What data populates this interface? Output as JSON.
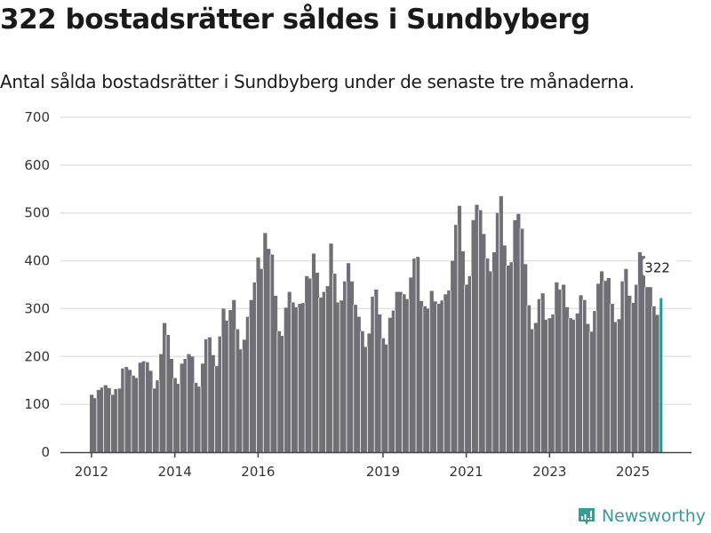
{
  "header": {
    "title": "322 bostadsrätter såldes i Sundbyberg",
    "subtitle": "Antal sålda bostadsrätter i Sundbyberg under de senaste tre månaderna."
  },
  "brand": {
    "name": "Newsworthy",
    "color": "#3a9a94"
  },
  "colors": {
    "bar": "#706f75",
    "highlight": "#1a9a8c",
    "grid": "#e3e3e3",
    "axis": "#444444"
  },
  "chart_data": {
    "type": "bar",
    "title": "322 bostadsrätter såldes i Sundbyberg",
    "subtitle": "Antal sålda bostadsrätter i Sundbyberg under de senaste tre månaderna.",
    "xlabel": "",
    "ylabel": "",
    "ylim": [
      0,
      700
    ],
    "yticks": [
      0,
      100,
      200,
      300,
      400,
      500,
      600,
      700
    ],
    "xticks": [
      "2012",
      "2014",
      "2016",
      "2019",
      "2021",
      "2023",
      "2025"
    ],
    "xtick_years": [
      2012,
      2014,
      2016,
      2019,
      2021,
      2023,
      2025
    ],
    "grid": true,
    "start": "2012-01",
    "frequency": "monthly",
    "highlight_last": true,
    "annotation": {
      "text": "322",
      "target": "last"
    },
    "values": [
      120,
      113,
      130,
      135,
      140,
      134,
      120,
      132,
      133,
      175,
      178,
      172,
      160,
      155,
      187,
      190,
      188,
      170,
      133,
      150,
      205,
      270,
      245,
      195,
      155,
      143,
      185,
      195,
      205,
      200,
      145,
      137,
      185,
      236,
      240,
      203,
      180,
      242,
      300,
      275,
      297,
      318,
      257,
      215,
      235,
      283,
      318,
      355,
      407,
      383,
      458,
      425,
      413,
      327,
      253,
      243,
      302,
      335,
      313,
      303,
      310,
      312,
      368,
      363,
      415,
      375,
      323,
      335,
      347,
      436,
      373,
      313,
      317,
      357,
      395,
      357,
      308,
      283,
      253,
      220,
      248,
      325,
      340,
      288,
      238,
      225,
      281,
      296,
      335,
      335,
      330,
      320,
      365,
      405,
      408,
      316,
      305,
      300,
      337,
      315,
      310,
      317,
      330,
      338,
      400,
      475,
      515,
      420,
      350,
      368,
      485,
      517,
      506,
      456,
      405,
      378,
      418,
      500,
      535,
      432,
      390,
      397,
      485,
      498,
      467,
      393,
      307,
      257,
      270,
      320,
      332,
      277,
      280,
      288,
      355,
      340,
      350,
      303,
      280,
      277,
      290,
      328,
      318,
      268,
      252,
      295,
      352,
      378,
      358,
      364,
      310,
      272,
      278,
      357,
      383,
      327,
      312,
      350,
      418,
      410,
      345,
      345,
      305,
      287,
      322
    ]
  }
}
